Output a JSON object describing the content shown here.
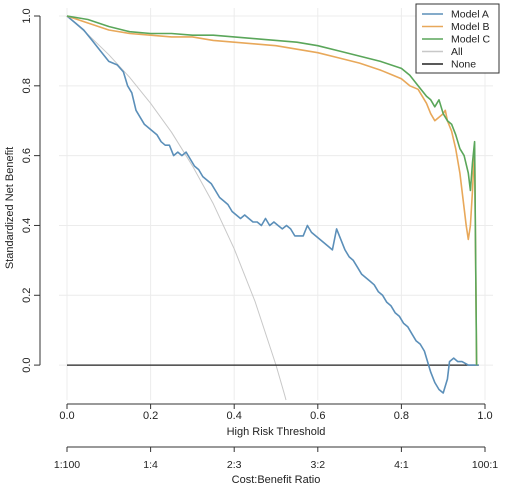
{
  "chart_data": {
    "type": "line",
    "title": "",
    "xlabel": "High Risk Threshold",
    "ylabel": "Standardized Net Benefit",
    "secondary_xlabel": "Cost:Benefit Ratio",
    "xlim": [
      0,
      1
    ],
    "ylim": [
      -0.1,
      1.0
    ],
    "x_ticks": [
      "0.0",
      "0.2",
      "0.4",
      "0.6",
      "0.8",
      "1.0"
    ],
    "y_ticks": [
      "0.0",
      "0.2",
      "0.4",
      "0.6",
      "0.8",
      "1.0"
    ],
    "secondary_ticks": [
      {
        "x": 0.0,
        "label": "1:100"
      },
      {
        "x": 0.2,
        "label": "1:4"
      },
      {
        "x": 0.4,
        "label": "2:3"
      },
      {
        "x": 0.6,
        "label": "3:2"
      },
      {
        "x": 0.8,
        "label": "4:1"
      },
      {
        "x": 1.0,
        "label": "100:1"
      }
    ],
    "grid": true,
    "legend_position": "top-right",
    "series": [
      {
        "name": "Model A",
        "color": "#5b8fb9",
        "points": [
          [
            0.0,
            1.0
          ],
          [
            0.02,
            0.98
          ],
          [
            0.04,
            0.96
          ],
          [
            0.06,
            0.93
          ],
          [
            0.08,
            0.9
          ],
          [
            0.1,
            0.87
          ],
          [
            0.12,
            0.86
          ],
          [
            0.135,
            0.84
          ],
          [
            0.145,
            0.8
          ],
          [
            0.155,
            0.78
          ],
          [
            0.165,
            0.73
          ],
          [
            0.175,
            0.71
          ],
          [
            0.185,
            0.69
          ],
          [
            0.195,
            0.68
          ],
          [
            0.205,
            0.67
          ],
          [
            0.215,
            0.66
          ],
          [
            0.225,
            0.64
          ],
          [
            0.235,
            0.63
          ],
          [
            0.245,
            0.63
          ],
          [
            0.255,
            0.6
          ],
          [
            0.265,
            0.61
          ],
          [
            0.275,
            0.6
          ],
          [
            0.285,
            0.61
          ],
          [
            0.295,
            0.59
          ],
          [
            0.305,
            0.57
          ],
          [
            0.315,
            0.56
          ],
          [
            0.325,
            0.54
          ],
          [
            0.335,
            0.53
          ],
          [
            0.345,
            0.52
          ],
          [
            0.355,
            0.5
          ],
          [
            0.365,
            0.48
          ],
          [
            0.375,
            0.47
          ],
          [
            0.385,
            0.46
          ],
          [
            0.395,
            0.44
          ],
          [
            0.405,
            0.43
          ],
          [
            0.415,
            0.42
          ],
          [
            0.425,
            0.43
          ],
          [
            0.435,
            0.42
          ],
          [
            0.445,
            0.41
          ],
          [
            0.455,
            0.41
          ],
          [
            0.465,
            0.4
          ],
          [
            0.475,
            0.42
          ],
          [
            0.485,
            0.4
          ],
          [
            0.495,
            0.41
          ],
          [
            0.505,
            0.4
          ],
          [
            0.515,
            0.39
          ],
          [
            0.525,
            0.4
          ],
          [
            0.535,
            0.39
          ],
          [
            0.545,
            0.37
          ],
          [
            0.555,
            0.37
          ],
          [
            0.565,
            0.37
          ],
          [
            0.575,
            0.4
          ],
          [
            0.585,
            0.38
          ],
          [
            0.595,
            0.37
          ],
          [
            0.605,
            0.36
          ],
          [
            0.615,
            0.35
          ],
          [
            0.625,
            0.34
          ],
          [
            0.635,
            0.33
          ],
          [
            0.645,
            0.39
          ],
          [
            0.655,
            0.36
          ],
          [
            0.665,
            0.33
          ],
          [
            0.675,
            0.31
          ],
          [
            0.685,
            0.3
          ],
          [
            0.695,
            0.28
          ],
          [
            0.705,
            0.26
          ],
          [
            0.715,
            0.25
          ],
          [
            0.725,
            0.24
          ],
          [
            0.735,
            0.23
          ],
          [
            0.745,
            0.21
          ],
          [
            0.755,
            0.2
          ],
          [
            0.765,
            0.18
          ],
          [
            0.775,
            0.17
          ],
          [
            0.785,
            0.15
          ],
          [
            0.795,
            0.14
          ],
          [
            0.805,
            0.12
          ],
          [
            0.815,
            0.11
          ],
          [
            0.825,
            0.09
          ],
          [
            0.835,
            0.07
          ],
          [
            0.845,
            0.06
          ],
          [
            0.855,
            0.04
          ],
          [
            0.86,
            0.02
          ],
          [
            0.87,
            -0.02
          ],
          [
            0.88,
            -0.05
          ],
          [
            0.89,
            -0.07
          ],
          [
            0.9,
            -0.08
          ],
          [
            0.91,
            -0.04
          ],
          [
            0.915,
            0.01
          ],
          [
            0.925,
            0.02
          ],
          [
            0.935,
            0.01
          ],
          [
            0.945,
            0.01
          ],
          [
            0.96,
            0.0
          ],
          [
            0.985,
            0.0
          ]
        ]
      },
      {
        "name": "Model B",
        "color": "#e8a85a",
        "points": [
          [
            0.0,
            1.0
          ],
          [
            0.05,
            0.98
          ],
          [
            0.1,
            0.96
          ],
          [
            0.15,
            0.95
          ],
          [
            0.2,
            0.945
          ],
          [
            0.25,
            0.94
          ],
          [
            0.3,
            0.94
          ],
          [
            0.35,
            0.93
          ],
          [
            0.4,
            0.925
          ],
          [
            0.45,
            0.92
          ],
          [
            0.5,
            0.915
          ],
          [
            0.55,
            0.905
          ],
          [
            0.6,
            0.895
          ],
          [
            0.65,
            0.88
          ],
          [
            0.7,
            0.865
          ],
          [
            0.75,
            0.845
          ],
          [
            0.78,
            0.83
          ],
          [
            0.8,
            0.82
          ],
          [
            0.82,
            0.8
          ],
          [
            0.84,
            0.79
          ],
          [
            0.85,
            0.77
          ],
          [
            0.86,
            0.75
          ],
          [
            0.87,
            0.72
          ],
          [
            0.88,
            0.7
          ],
          [
            0.9,
            0.72
          ],
          [
            0.905,
            0.73
          ],
          [
            0.91,
            0.7
          ],
          [
            0.92,
            0.67
          ],
          [
            0.93,
            0.62
          ],
          [
            0.94,
            0.55
          ],
          [
            0.95,
            0.45
          ],
          [
            0.955,
            0.4
          ],
          [
            0.96,
            0.36
          ],
          [
            0.965,
            0.4
          ],
          [
            0.97,
            0.5
          ],
          [
            0.975,
            0.62
          ],
          [
            0.98,
            0.0
          ]
        ]
      },
      {
        "name": "Model C",
        "color": "#5aa65a",
        "points": [
          [
            0.0,
            1.0
          ],
          [
            0.05,
            0.99
          ],
          [
            0.1,
            0.97
          ],
          [
            0.15,
            0.955
          ],
          [
            0.2,
            0.95
          ],
          [
            0.25,
            0.95
          ],
          [
            0.3,
            0.945
          ],
          [
            0.35,
            0.945
          ],
          [
            0.4,
            0.94
          ],
          [
            0.45,
            0.935
          ],
          [
            0.5,
            0.93
          ],
          [
            0.55,
            0.925
          ],
          [
            0.6,
            0.915
          ],
          [
            0.65,
            0.9
          ],
          [
            0.7,
            0.885
          ],
          [
            0.75,
            0.87
          ],
          [
            0.8,
            0.85
          ],
          [
            0.82,
            0.83
          ],
          [
            0.84,
            0.8
          ],
          [
            0.86,
            0.77
          ],
          [
            0.87,
            0.76
          ],
          [
            0.88,
            0.74
          ],
          [
            0.89,
            0.76
          ],
          [
            0.9,
            0.72
          ],
          [
            0.91,
            0.7
          ],
          [
            0.92,
            0.69
          ],
          [
            0.93,
            0.66
          ],
          [
            0.94,
            0.62
          ],
          [
            0.95,
            0.6
          ],
          [
            0.96,
            0.55
          ],
          [
            0.965,
            0.5
          ],
          [
            0.97,
            0.58
          ],
          [
            0.975,
            0.64
          ],
          [
            0.98,
            0.0
          ]
        ]
      },
      {
        "name": "All",
        "color": "#c8c8c8",
        "points": [
          [
            0.0,
            1.0
          ],
          [
            0.05,
            0.947
          ],
          [
            0.1,
            0.889
          ],
          [
            0.15,
            0.824
          ],
          [
            0.2,
            0.75
          ],
          [
            0.25,
            0.667
          ],
          [
            0.3,
            0.571
          ],
          [
            0.35,
            0.462
          ],
          [
            0.4,
            0.333
          ],
          [
            0.45,
            0.182
          ],
          [
            0.5,
            0.0
          ],
          [
            0.52,
            -0.083
          ],
          [
            0.524,
            -0.1
          ]
        ]
      },
      {
        "name": "None",
        "color": "#222222",
        "points": [
          [
            0.0,
            0.0
          ],
          [
            0.985,
            0.0
          ]
        ]
      }
    ]
  }
}
